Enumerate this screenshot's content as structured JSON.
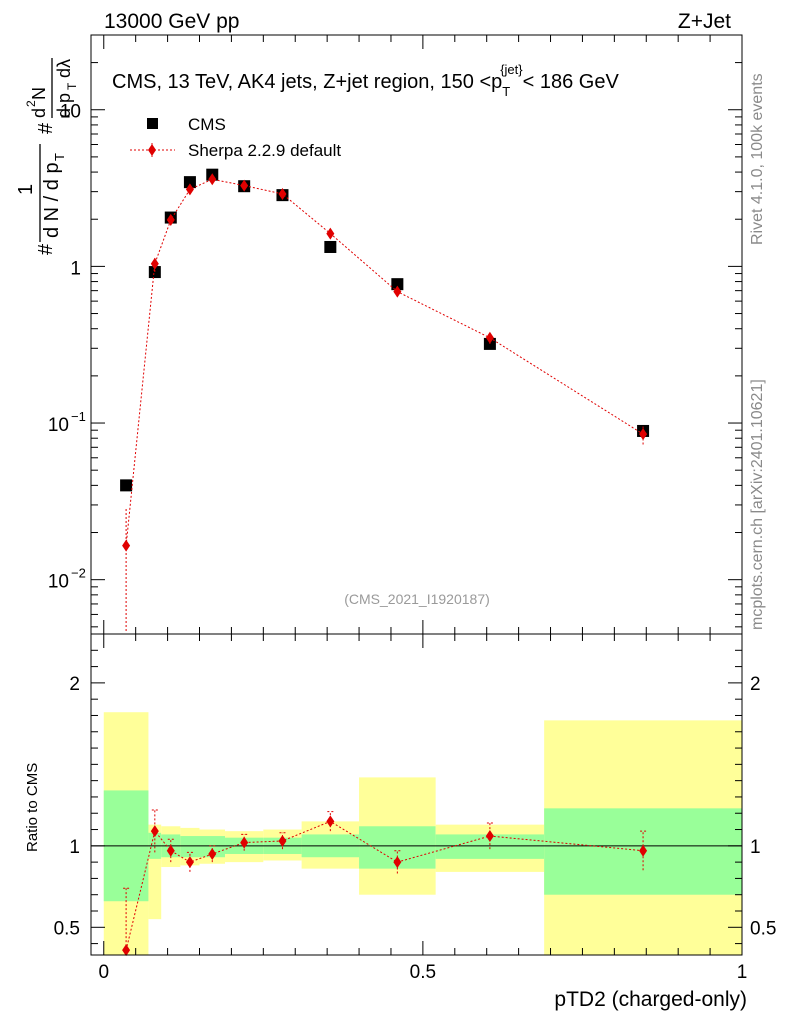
{
  "header": {
    "left": "13000 GeV pp",
    "right": "Z+Jet"
  },
  "side_labels": {
    "rivet": "Rivet 4.1.0,  100k events",
    "mcplots": "mcplots.cern.ch [arXiv:2401.10621]"
  },
  "chart_data": [
    {
      "type": "scatter",
      "panel": "main",
      "title": "CMS, 13 TeV, AK4 jets, Z+jet region, 150 <p_T^{jet}< 186 GeV",
      "ylabel": "1/(dN/dp_T) d²N/(dp_T dλ)",
      "yscale": "log",
      "ylim": [
        0.0045,
        30
      ],
      "xlim": [
        -0.02,
        1.0
      ],
      "yticks": [
        0.01,
        0.1,
        1,
        10
      ],
      "ytick_labels": [
        [
          "10",
          "−2"
        ],
        [
          "10",
          "−1"
        ],
        [
          "1",
          ""
        ],
        [
          "10",
          ""
        ]
      ],
      "watermark": "(CMS_2021_I1920187)",
      "legend": [
        {
          "name": "CMS",
          "marker": "square"
        },
        {
          "name": "Sherpa 2.2.9 default",
          "marker": "diamond"
        }
      ],
      "bins": [
        [
          0.0,
          0.07
        ],
        [
          0.07,
          0.09
        ],
        [
          0.09,
          0.12
        ],
        [
          0.12,
          0.15
        ],
        [
          0.15,
          0.19
        ],
        [
          0.19,
          0.25
        ],
        [
          0.25,
          0.31
        ],
        [
          0.31,
          0.4
        ],
        [
          0.4,
          0.52
        ],
        [
          0.52,
          0.69
        ],
        [
          0.69,
          1.0
        ]
      ],
      "series": [
        {
          "name": "CMS",
          "x": [
            0.035,
            0.08,
            0.105,
            0.135,
            0.17,
            0.22,
            0.28,
            0.355,
            0.46,
            0.605,
            0.845
          ],
          "y": [
            0.04,
            0.92,
            2.05,
            3.45,
            3.85,
            3.25,
            2.85,
            1.33,
            0.77,
            0.32,
            0.089
          ]
        },
        {
          "name": "Sherpa 2.2.9 default",
          "x": [
            0.035,
            0.08,
            0.105,
            0.135,
            0.17,
            0.22,
            0.28,
            0.355,
            0.46,
            0.605,
            0.845
          ],
          "y": [
            0.0165,
            1.04,
            1.98,
            3.1,
            3.6,
            3.28,
            2.9,
            1.62,
            0.69,
            0.35,
            0.085
          ],
          "err_lo": [
            0.0118,
            0.12,
            0.15,
            0.22,
            0.2,
            0.15,
            0.14,
            0.08,
            0.05,
            0.03,
            0.012
          ],
          "err_hi": [
            0.0118,
            0.12,
            0.15,
            0.22,
            0.2,
            0.15,
            0.14,
            0.08,
            0.05,
            0.03,
            0.012
          ]
        }
      ]
    },
    {
      "type": "scatter",
      "panel": "ratio",
      "ylabel": "Ratio to CMS",
      "xlabel": "pTD2 (charged-only)",
      "ylim": [
        0.33,
        2.3
      ],
      "xlim": [
        -0.02,
        1.0
      ],
      "yticks": [
        0.5,
        1,
        2
      ],
      "ytick_labels": [
        "0.5",
        "1",
        "2"
      ],
      "xticks": [
        0,
        0.5,
        1
      ],
      "xtick_labels": [
        "0",
        "0.5",
        "1"
      ],
      "bands": {
        "green_lo": [
          0.66,
          0.92,
          0.93,
          0.93,
          0.93,
          0.95,
          0.95,
          0.93,
          0.86,
          0.92,
          0.7
        ],
        "green_hi": [
          1.34,
          1.08,
          1.07,
          1.06,
          1.06,
          1.05,
          1.05,
          1.07,
          1.12,
          1.07,
          1.23
        ],
        "yellow_lo": [
          0.33,
          0.55,
          0.87,
          0.88,
          0.89,
          0.9,
          0.91,
          0.86,
          0.7,
          0.84,
          0.33
        ],
        "yellow_hi": [
          1.82,
          1.13,
          1.12,
          1.11,
          1.1,
          1.09,
          1.1,
          1.15,
          1.42,
          1.13,
          1.77
        ]
      },
      "series": [
        {
          "name": "Sherpa 2.2.9 default",
          "x": [
            0.035,
            0.08,
            0.105,
            0.135,
            0.17,
            0.22,
            0.28,
            0.355,
            0.46,
            0.605,
            0.845
          ],
          "y": [
            0.36,
            1.09,
            0.97,
            0.9,
            0.95,
            1.02,
            1.03,
            1.15,
            0.9,
            1.06,
            0.97
          ],
          "err_lo": [
            0.0,
            0.13,
            0.07,
            0.06,
            0.05,
            0.05,
            0.05,
            0.06,
            0.07,
            0.08,
            0.12
          ],
          "err_hi": [
            0.38,
            0.13,
            0.07,
            0.06,
            0.05,
            0.05,
            0.05,
            0.06,
            0.07,
            0.08,
            0.12
          ]
        }
      ]
    }
  ]
}
